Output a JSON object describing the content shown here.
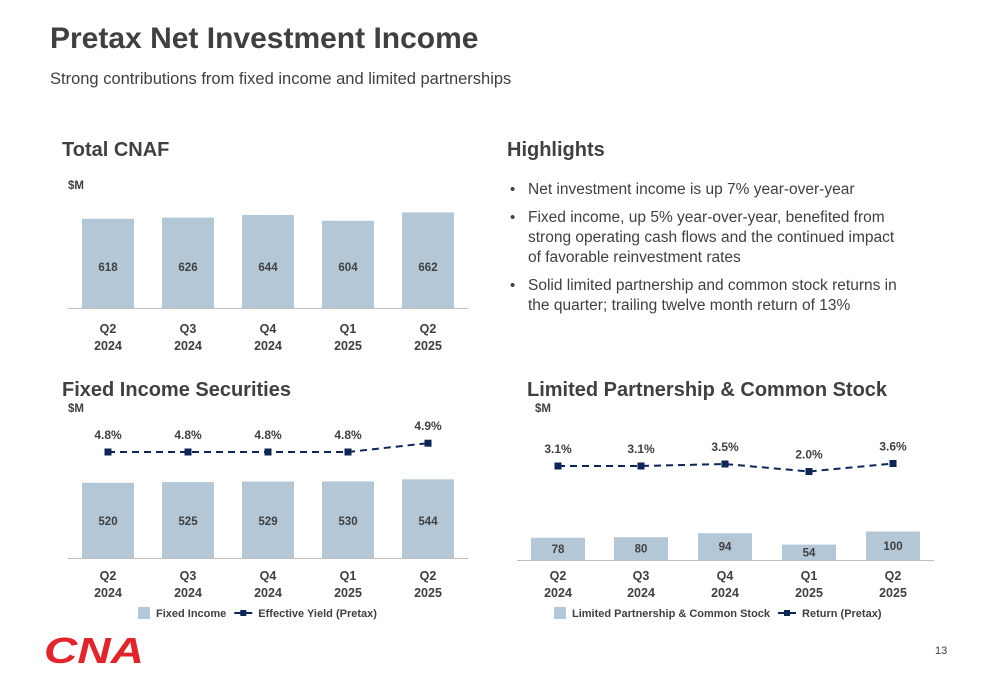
{
  "header": {
    "title": "Pretax Net Investment Income",
    "subtitle": "Strong contributions from fixed income and limited partnerships"
  },
  "highlights": {
    "title": "Highlights",
    "items": [
      "Net investment income is up 7% year-over-year",
      "Fixed income, up 5% year-over-year, benefited from strong operating cash flows and the continued impact of favorable reinvestment rates",
      "Solid limited partnership and common stock returns in the quarter; trailing twelve month return of 13%"
    ]
  },
  "colors": {
    "bar": "#b4c7d7",
    "line": "#0d2557",
    "logo": "#e4242b",
    "text": "#404040"
  },
  "footer": {
    "page_number": "13",
    "logo_text": "CNA"
  },
  "chart_data": [
    {
      "id": "total",
      "type": "bar",
      "title": "Total CNAF",
      "unit_label": "$M",
      "categories": [
        [
          "Q2",
          "2024"
        ],
        [
          "Q3",
          "2024"
        ],
        [
          "Q4",
          "2024"
        ],
        [
          "Q1",
          "2025"
        ],
        [
          "Q2",
          "2025"
        ]
      ],
      "series": [
        {
          "values": [
            618,
            626,
            644,
            604,
            662
          ]
        }
      ]
    },
    {
      "id": "fixed",
      "type": "bar",
      "title": "Fixed Income Securities",
      "unit_label": "$M",
      "categories": [
        [
          "Q2",
          "2024"
        ],
        [
          "Q3",
          "2024"
        ],
        [
          "Q4",
          "2024"
        ],
        [
          "Q1",
          "2025"
        ],
        [
          "Q2",
          "2025"
        ]
      ],
      "series": [
        {
          "name": "Fixed Income",
          "kind": "bar",
          "values": [
            520,
            525,
            529,
            530,
            544
          ]
        },
        {
          "name": "Effective Yield (Pretax)",
          "kind": "line",
          "values": [
            4.8,
            4.8,
            4.8,
            4.8,
            4.9
          ],
          "labels": [
            "4.8%",
            "4.8%",
            "4.8%",
            "4.8%",
            "4.9%"
          ]
        }
      ],
      "legend": "bottom"
    },
    {
      "id": "lp",
      "type": "bar",
      "title": "Limited Partnership & Common Stock",
      "unit_label": "$M",
      "categories": [
        [
          "Q2",
          "2024"
        ],
        [
          "Q3",
          "2024"
        ],
        [
          "Q4",
          "2024"
        ],
        [
          "Q1",
          "2025"
        ],
        [
          "Q2",
          "2025"
        ]
      ],
      "series": [
        {
          "name": "Limited Partnership & Common Stock",
          "kind": "bar",
          "values": [
            78,
            80,
            94,
            54,
            100
          ]
        },
        {
          "name": "Return (Pretax)",
          "kind": "line",
          "values": [
            3.1,
            3.1,
            3.5,
            2.0,
            3.6
          ],
          "labels": [
            "3.1%",
            "3.1%",
            "3.5%",
            "2.0%",
            "3.6%"
          ]
        }
      ],
      "legend": "bottom"
    }
  ]
}
